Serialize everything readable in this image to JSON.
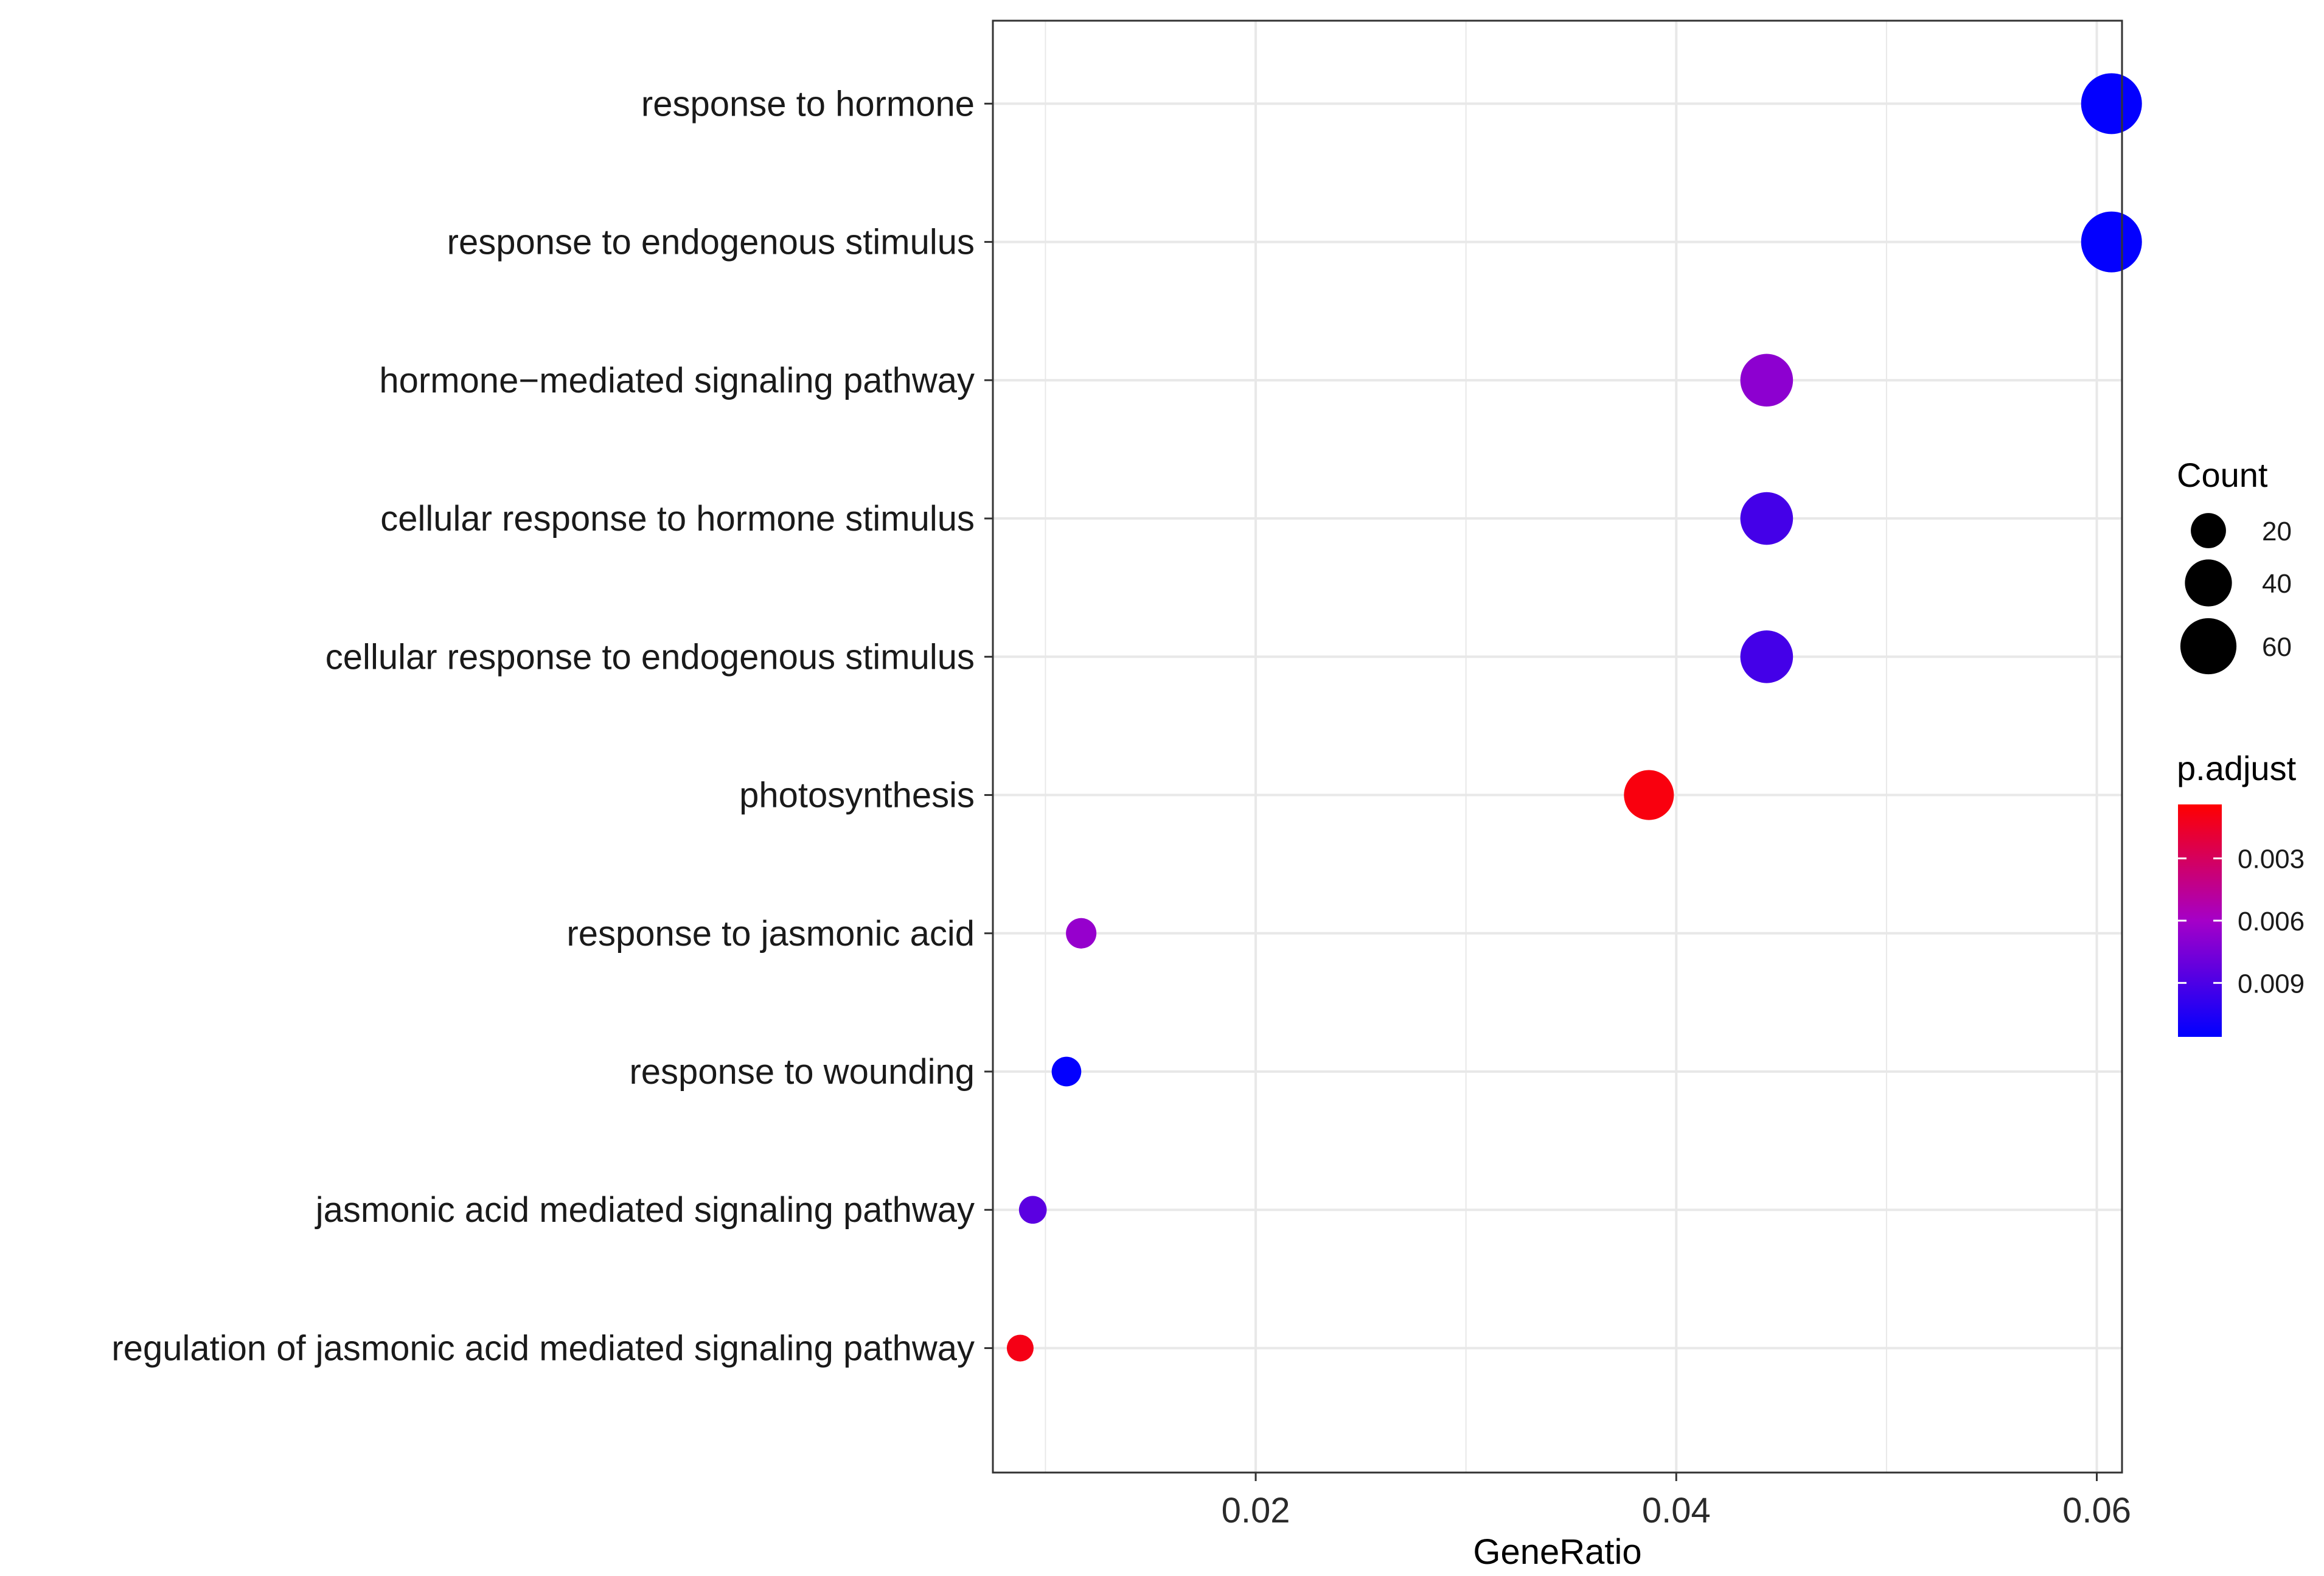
{
  "chart_data": {
    "type": "scatter",
    "subtype": "dot-plot",
    "title": "",
    "xlabel": "GeneRatio",
    "ylabel": "",
    "xlim": [
      0.0075,
      0.0612
    ],
    "xticks": [
      {
        "value": 0.02,
        "label": "0.02"
      },
      {
        "value": 0.04,
        "label": "0.04"
      },
      {
        "value": 0.06,
        "label": "0.06"
      }
    ],
    "grid": true,
    "points": [
      {
        "term": "response to hormone",
        "gene_ratio": 0.0607,
        "count": 72,
        "p_adjust": 0.0115
      },
      {
        "term": "response to endogenous stimulus",
        "gene_ratio": 0.0607,
        "count": 72,
        "p_adjust": 0.0115
      },
      {
        "term": "hormone−mediated signaling pathway",
        "gene_ratio": 0.0443,
        "count": 52,
        "p_adjust": 0.0068
      },
      {
        "term": "cellular response to hormone stimulus",
        "gene_ratio": 0.0443,
        "count": 52,
        "p_adjust": 0.0093
      },
      {
        "term": "cellular response to endogenous stimulus",
        "gene_ratio": 0.0443,
        "count": 52,
        "p_adjust": 0.0093
      },
      {
        "term": "photosynthesis",
        "gene_ratio": 0.0387,
        "count": 46,
        "p_adjust": 0.0008
      },
      {
        "term": "response to jasmonic acid",
        "gene_ratio": 0.0117,
        "count": 14,
        "p_adjust": 0.0065
      },
      {
        "term": "response to wounding",
        "gene_ratio": 0.011,
        "count": 13,
        "p_adjust": 0.0115
      },
      {
        "term": "jasmonic acid mediated signaling pathway",
        "gene_ratio": 0.0094,
        "count": 11,
        "p_adjust": 0.0085
      },
      {
        "term": "regulation of jasmonic acid mediated signaling pathway",
        "gene_ratio": 0.0088,
        "count": 10,
        "p_adjust": 0.001
      }
    ],
    "size_legend": {
      "title": "Count",
      "entries": [
        {
          "count": 20,
          "label": "20"
        },
        {
          "count": 40,
          "label": "40"
        },
        {
          "count": 60,
          "label": "60"
        }
      ],
      "range": [
        10,
        72
      ]
    },
    "color_legend": {
      "title": "p.adjust",
      "range": [
        0.0004,
        0.0116
      ],
      "ticks": [
        {
          "value": 0.003,
          "label": "0.003"
        },
        {
          "value": 0.006,
          "label": "0.006"
        },
        {
          "value": 0.009,
          "label": "0.009"
        }
      ],
      "low_color": "#ff0000",
      "high_color": "#0000ff",
      "mid_color": "#a500c8"
    },
    "colors": {
      "grid": "#e8e8e8",
      "panel_border": "#333333",
      "point_legend": "#000000"
    }
  }
}
